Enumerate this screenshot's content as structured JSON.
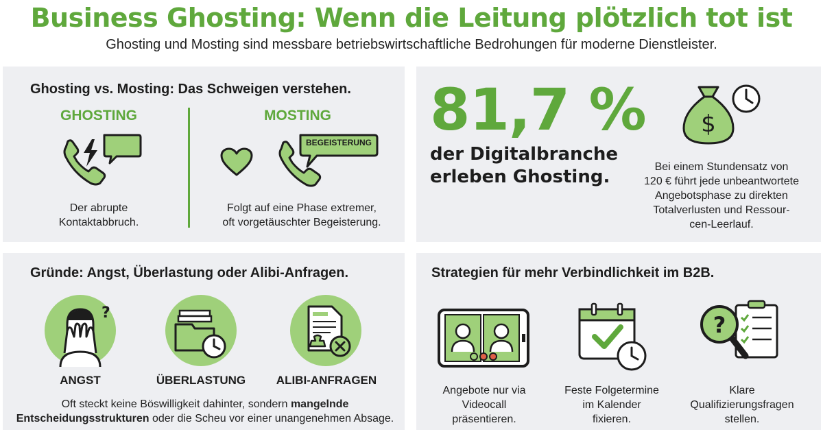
{
  "header": {
    "title": "Business Ghosting: Wenn die Leitung plötzlich tot ist",
    "subtitle": "Ghosting und Mosting sind messbare betriebswirtschaftliche Bedrohungen für moderne Dienstleister."
  },
  "comparison": {
    "title": "Ghosting vs. Mosting: Das Schweigen verstehen.",
    "ghosting": {
      "heading": "GHOSTING",
      "caption_line1": "Der abrupte",
      "caption_line2": "Kontaktabbruch.",
      "icons": [
        "phone-icon",
        "lightning-icon",
        "speech-bubble-icon"
      ]
    },
    "mosting": {
      "heading": "MOSTING",
      "bubble_text": "BEGEISTERUNG",
      "caption_line1": "Folgt auf eine Phase extremer,",
      "caption_line2": "oft vorgetäuschter Begeisterung.",
      "icons": [
        "heart-icon",
        "phone-icon",
        "speech-bubble-icon"
      ]
    }
  },
  "statistic": {
    "value": "81,7 %",
    "text_line1": "der Digitalbranche",
    "text_line2": "erleben Ghosting.",
    "cost_lines": [
      "Bei einem Stundensatz von",
      "120 € führt jede unbeantwortete",
      "Angebotsphase zu direkten",
      "Totalverlusten und Ressour-",
      "cen-Leerlauf."
    ],
    "icons": [
      "money-bag-icon",
      "clock-icon"
    ]
  },
  "reasons": {
    "title": "Gründe: Angst, Überlastung oder Alibi-Anfragen.",
    "items": [
      {
        "label": "ANGST",
        "icon": "covering-face-icon"
      },
      {
        "label": "ÜBERLASTUNG",
        "icon": "folders-clock-icon"
      },
      {
        "label": "ALIBI-ANFRAGEN",
        "icon": "document-rejected-icon"
      }
    ],
    "text_before": "Oft steckt keine Böswilligkeit dahinter, sondern ",
    "text_bold1": "mangelnde",
    "text_bold2": "Entscheidungsstrukturen",
    "text_after": " oder die Scheu vor einer unangenehmen Absage."
  },
  "strategies": {
    "title": "Strategien für mehr Verbindlichkeit im B2B.",
    "items": [
      {
        "lines": [
          "Angebote nur via",
          "Videocall",
          "präsentieren."
        ],
        "icon": "videocall-icon"
      },
      {
        "lines": [
          "Feste Folgetermine",
          "im Kalender",
          "fixieren."
        ],
        "icon": "calendar-check-icon"
      },
      {
        "lines": [
          "Klare",
          "Qualifizierungsfragen",
          "stellen."
        ],
        "icon": "question-checklist-icon"
      }
    ]
  },
  "colors": {
    "brand_green": "#5fa83c",
    "light_green": "#9fd07a",
    "panel_bg": "#eeeff2",
    "dark_text": "#1d1d1d"
  }
}
